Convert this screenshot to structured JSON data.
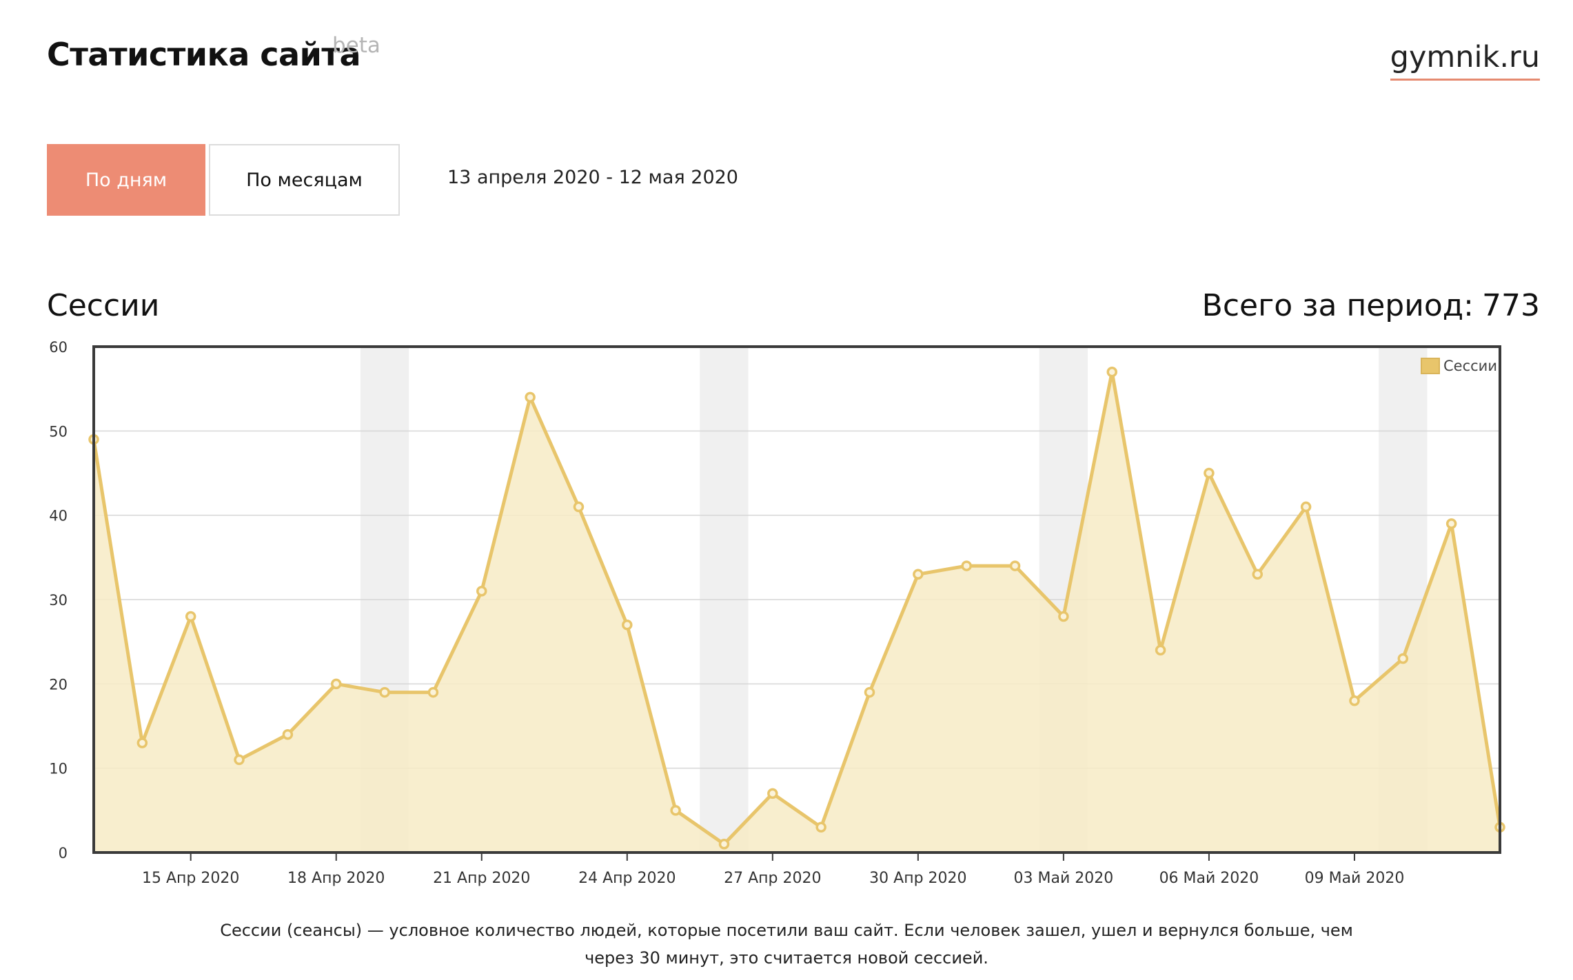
{
  "header": {
    "title": "Статистика сайта",
    "beta": "beta",
    "site": "gymnik.ru"
  },
  "controls": {
    "by_days": "По дням",
    "by_months": "По месяцам",
    "date_range": "13 апреля 2020 - 12 мая 2020"
  },
  "section": {
    "title": "Сессии",
    "total_label": "Всего за период:",
    "total_value": "773"
  },
  "note": "Сессии (сеансы) — условное количество людей, которые посетили ваш сайт. Если человек зашел, ушел и вернулся больше, чем через 30 минут, это считается новой сессией.",
  "colors": {
    "accent": "#ed8c74",
    "series_line": "#e8c56b",
    "series_fill": "#f7ebc5",
    "weekend_band": "#f0f0f0"
  },
  "chart_data": {
    "type": "area",
    "x": [
      "2020-04-13",
      "2020-04-14",
      "2020-04-15",
      "2020-04-16",
      "2020-04-17",
      "2020-04-18",
      "2020-04-19",
      "2020-04-20",
      "2020-04-21",
      "2020-04-22",
      "2020-04-23",
      "2020-04-24",
      "2020-04-25",
      "2020-04-26",
      "2020-04-27",
      "2020-04-28",
      "2020-04-29",
      "2020-04-30",
      "2020-05-01",
      "2020-05-02",
      "2020-05-03",
      "2020-05-04",
      "2020-05-05",
      "2020-05-06",
      "2020-05-07",
      "2020-05-08",
      "2020-05-09",
      "2020-05-10",
      "2020-05-11",
      "2020-05-12"
    ],
    "series": [
      {
        "name": "Сессии",
        "values": [
          49,
          13,
          28,
          11,
          14,
          20,
          19,
          19,
          31,
          54,
          41,
          27,
          5,
          1,
          7,
          3,
          19,
          33,
          34,
          34,
          28,
          57,
          24,
          45,
          33,
          41,
          18,
          23,
          39,
          3
        ]
      }
    ],
    "x_tick_labels": [
      "15 Апр 2020",
      "18 Апр 2020",
      "21 Апр 2020",
      "24 Апр 2020",
      "27 Апр 2020",
      "30 Апр 2020",
      "03 Май 2020",
      "06 Май 2020",
      "09 Май 2020"
    ],
    "x_tick_dates": [
      "2020-04-15",
      "2020-04-18",
      "2020-04-21",
      "2020-04-24",
      "2020-04-27",
      "2020-04-30",
      "2020-05-03",
      "2020-05-06",
      "2020-05-09"
    ],
    "weekend_bands": [
      [
        "2020-04-18",
        "2020-04-19"
      ],
      [
        "2020-04-25",
        "2020-04-26"
      ],
      [
        "2020-05-02",
        "2020-05-03"
      ],
      [
        "2020-05-09",
        "2020-05-10"
      ]
    ],
    "ylim": [
      0,
      60
    ],
    "y_ticks": [
      0,
      10,
      20,
      30,
      40,
      50,
      60
    ],
    "grid": true,
    "legend": "top-right"
  }
}
